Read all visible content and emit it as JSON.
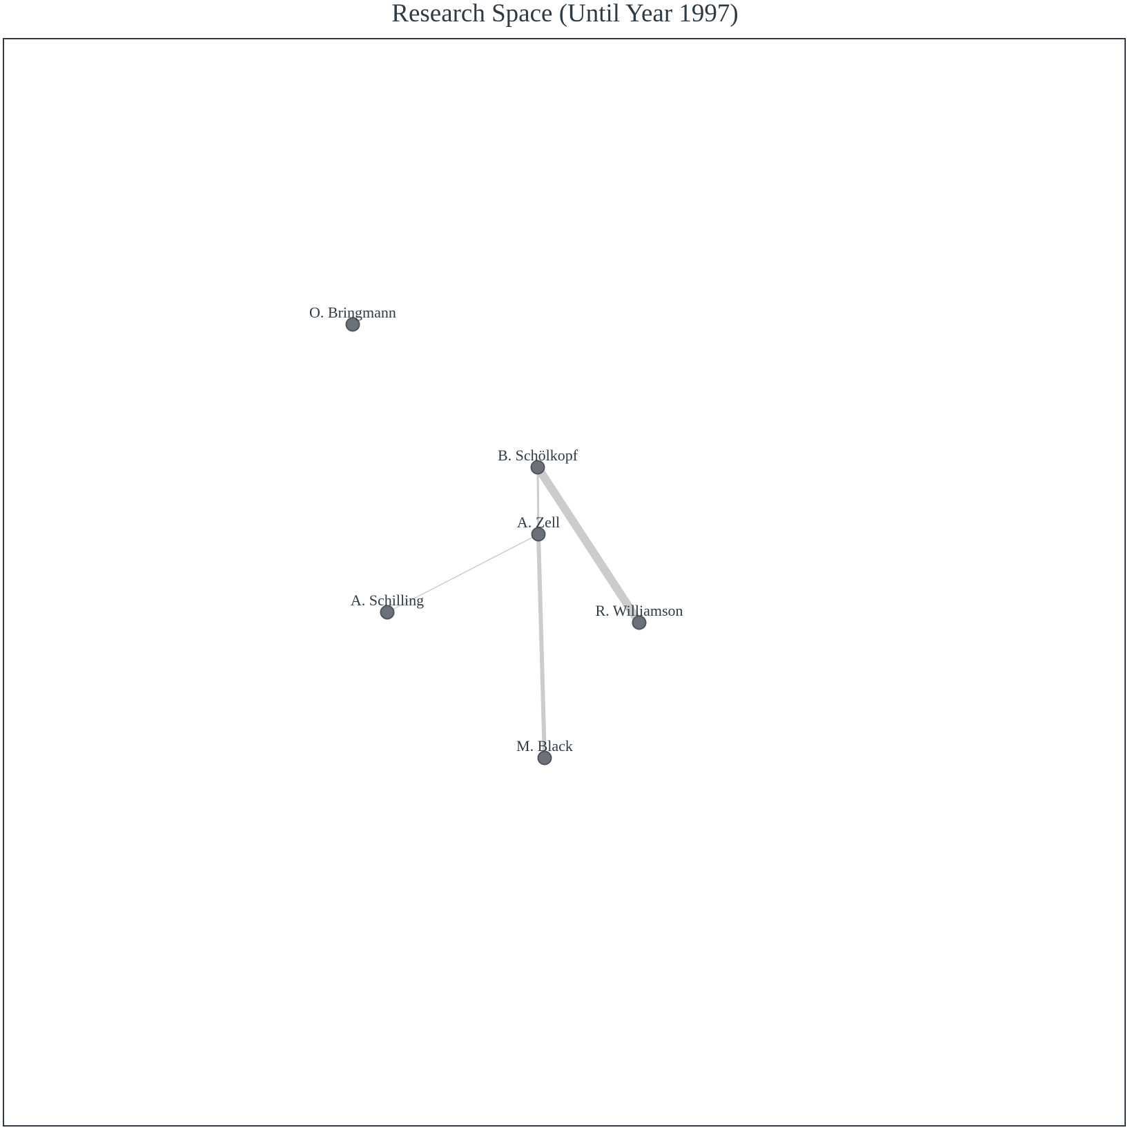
{
  "title": "Research Space (Until Year 1997)",
  "colors": {
    "node_fill": "#6b7079",
    "node_stroke": "#50555d",
    "edge": "#cccccc",
    "text": "#2f3a45",
    "frame": "#2f3a45"
  },
  "network": {
    "nodes": [
      {
        "id": "bringmann",
        "label": "O. Bringmann"
      },
      {
        "id": "scholkopf",
        "label": "B. Schölkopf"
      },
      {
        "id": "zell",
        "label": "A. Zell"
      },
      {
        "id": "schilling",
        "label": "A. Schilling"
      },
      {
        "id": "williamson",
        "label": "R. Williamson"
      },
      {
        "id": "black",
        "label": "M. Black"
      }
    ],
    "edges": [
      {
        "source": "scholkopf",
        "target": "williamson",
        "weight": 4
      },
      {
        "source": "scholkopf",
        "target": "zell",
        "weight": 1
      },
      {
        "source": "zell",
        "target": "black",
        "weight": 2
      },
      {
        "source": "zell",
        "target": "schilling",
        "weight": 0.5
      }
    ]
  }
}
